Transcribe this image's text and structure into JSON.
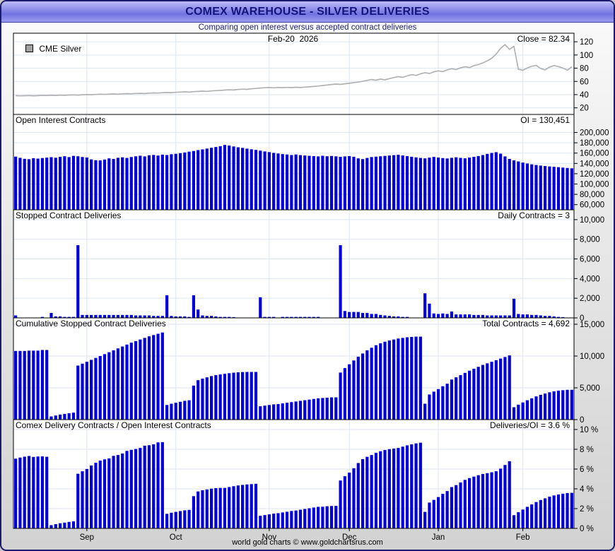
{
  "window": {
    "title": "COMEX WAREHOUSE - SILVER DELIVERIES",
    "subtitle": "Comparing open interest versus accepted contract deliveries",
    "footer": "world gold charts © www.goldchartsrus.com"
  },
  "colors": {
    "bar": "#0000dd",
    "price_line": "#b2b2b2",
    "grid": "#dde6f2",
    "frame": "#000000",
    "axis_text": "#000000",
    "title_text": "#14147c",
    "titlebar_blue": "#7272e0"
  },
  "chart_data": {
    "type": "bar",
    "title": "COMEX WAREHOUSE - SILVER DELIVERIES",
    "subtitle": "Comparing open interest versus accepted contract deliveries",
    "x_axis": {
      "n_points": 126,
      "month_labels": [
        "Sep",
        "Oct",
        "Nov",
        "Dec",
        "Jan",
        "Feb"
      ],
      "month_start_indices": [
        16,
        36,
        57,
        75,
        95,
        114
      ],
      "delivery_cycle_start_indices": [
        8,
        34,
        55,
        73,
        92,
        112
      ]
    },
    "panels": [
      {
        "type": "line",
        "series": "price",
        "legend_label": "CME Silver",
        "center_label": "Feb-20  2026",
        "right_label": "Close = 82.34",
        "close_value": 82.34,
        "ymin": 10,
        "ymax": 133,
        "ytick_vals": [
          20,
          40,
          60,
          80,
          100,
          120
        ],
        "ytick_labels": [
          "20",
          "40",
          "60",
          "80",
          "100",
          "120"
        ]
      },
      {
        "type": "bar",
        "series": "oi",
        "label": "Open Interest Contracts",
        "right_label": "OI = 130,451",
        "oi_value": 130451,
        "ymin": 50000,
        "ymax": 235000,
        "ytick_vals": [
          60000,
          80000,
          100000,
          120000,
          140000,
          160000,
          180000,
          200000
        ],
        "ytick_labels": [
          "60,000",
          "80,000",
          "100,000",
          "120,000",
          "140,000",
          "160,000",
          "180,000",
          "200,000"
        ]
      },
      {
        "type": "bar",
        "series": "daily",
        "label": "Stopped Contract Deliveries",
        "right_label": "Daily Contracts = 3",
        "daily_value": 3,
        "ymin": 0,
        "ymax": 11000,
        "ytick_vals": [
          0,
          2000,
          4000,
          6000,
          8000,
          10000
        ],
        "ytick_labels": [
          "0",
          "2,000",
          "4,000",
          "6,000",
          "8,000",
          "10,000"
        ]
      },
      {
        "type": "bar",
        "series": "cumulative",
        "label": "Cumulative Stopped Contract Deliveries",
        "right_label": "Total Contracts = 4,692",
        "total_value": 4692,
        "ymin": 0,
        "ymax": 16000,
        "ytick_vals": [
          0,
          5000,
          10000,
          15000
        ],
        "ytick_labels": [
          "0",
          "5,000",
          "10,000",
          "15,000"
        ]
      },
      {
        "type": "bar",
        "series": "ratio",
        "derived": "ratio = cumulative / oi * 100",
        "label": "Comex Delivery Contracts / Open Interest Contracts",
        "right_label": "Deliveries/OI = 3.6 %",
        "ratio_value": 3.6,
        "ymin": 0,
        "ymax": 11,
        "ytick_vals": [
          0,
          2,
          4,
          6,
          8,
          10
        ],
        "ytick_labels": [
          "0 %",
          "2 %",
          "4 %",
          "6 %",
          "8 %",
          "10 %"
        ]
      }
    ],
    "series": {
      "price": [
        38.4,
        38.1,
        38.3,
        38.6,
        38.2,
        38.5,
        38.9,
        38.7,
        39.0,
        38.8,
        39.2,
        39.0,
        39.4,
        39.6,
        39.3,
        39.8,
        40.1,
        39.9,
        40.3,
        40.6,
        40.4,
        40.8,
        41.0,
        40.7,
        41.2,
        41.5,
        41.3,
        41.8,
        42.0,
        41.7,
        42.3,
        42.6,
        42.4,
        42.9,
        43.2,
        43.0,
        43.5,
        43.9,
        44.2,
        43.8,
        44.5,
        44.9,
        45.3,
        45.0,
        45.6,
        46.0,
        46.4,
        46.9,
        47.3,
        47.0,
        47.8,
        48.3,
        48.0,
        48.8,
        49.4,
        50.0,
        50.4,
        50.8,
        50.3,
        50.9,
        50.5,
        51.0,
        50.6,
        51.2,
        50.8,
        51.4,
        51.8,
        52.4,
        53.0,
        53.8,
        54.5,
        55.3,
        56.0,
        55.5,
        56.4,
        57.2,
        58.1,
        59.0,
        60.2,
        61.5,
        62.8,
        61.9,
        63.5,
        62.4,
        64.2,
        65.8,
        67.2,
        66.1,
        68.4,
        70.2,
        69.0,
        71.5,
        73.2,
        72.0,
        74.5,
        76.0,
        74.8,
        77.5,
        79.2,
        78.0,
        80.5,
        82.3,
        81.0,
        83.8,
        85.5,
        88.0,
        91.2,
        95.0,
        101.5,
        110.0,
        115.8,
        108.5,
        113.2,
        78.5,
        76.8,
        80.4,
        83.0,
        84.2,
        79.6,
        77.5,
        81.8,
        84.0,
        82.5,
        80.2,
        77.0,
        82.34
      ],
      "oi": [
        153200,
        150800,
        148900,
        148200,
        150100,
        149300,
        150400,
        151200,
        152100,
        151000,
        152800,
        153900,
        152200,
        154600,
        153800,
        152400,
        151500,
        147800,
        146200,
        145800,
        147500,
        149800,
        148600,
        150900,
        151800,
        150600,
        152400,
        153800,
        154900,
        153600,
        155800,
        156400,
        155200,
        157100,
        156300,
        157800,
        158600,
        159900,
        161200,
        162800,
        164100,
        165900,
        167200,
        168800,
        170300,
        171900,
        173400,
        175800,
        174600,
        172900,
        171300,
        170100,
        168700,
        167400,
        166200,
        164800,
        163200,
        161900,
        160400,
        159200,
        158100,
        157300,
        156200,
        157400,
        156100,
        155300,
        154700,
        154100,
        153600,
        154800,
        153900,
        154500,
        153700,
        152800,
        153600,
        154200,
        152900,
        149800,
        148400,
        150600,
        152300,
        153100,
        153800,
        154600,
        155300,
        156100,
        156800,
        155400,
        154200,
        152900,
        151800,
        150600,
        149800,
        151200,
        152600,
        151400,
        150300,
        149600,
        150800,
        151900,
        150700,
        149900,
        151300,
        152800,
        154300,
        156200,
        158400,
        160300,
        161800,
        158900,
        153600,
        148700,
        145900,
        143800,
        141600,
        139800,
        138200,
        136900,
        135800,
        134900,
        134100,
        133400,
        132700,
        131900,
        131200,
        130451
      ],
      "daily": [
        250,
        0,
        0,
        50,
        0,
        0,
        100,
        0,
        500,
        150,
        150,
        100,
        100,
        100,
        7400,
        300,
        300,
        300,
        300,
        300,
        300,
        300,
        300,
        300,
        300,
        300,
        300,
        250,
        250,
        250,
        250,
        200,
        200,
        200,
        2300,
        200,
        150,
        150,
        150,
        100,
        2300,
        850,
        250,
        200,
        200,
        150,
        100,
        100,
        100,
        80,
        60,
        40,
        20,
        0,
        0,
        2100,
        100,
        100,
        100,
        50,
        100,
        100,
        100,
        100,
        100,
        100,
        100,
        100,
        100,
        50,
        50,
        50,
        0,
        7400,
        700,
        600,
        600,
        600,
        500,
        500,
        400,
        400,
        300,
        250,
        200,
        150,
        150,
        100,
        100,
        50,
        50,
        0,
        2500,
        1450,
        450,
        400,
        450,
        400,
        650,
        350,
        350,
        350,
        350,
        300,
        300,
        300,
        250,
        250,
        250,
        250,
        250,
        250,
        1950,
        400,
        350,
        350,
        300,
        300,
        250,
        200,
        200,
        150,
        100,
        80,
        59,
        3
      ],
      "cumulative": [
        10800,
        10800,
        10800,
        10850,
        10850,
        10850,
        10950,
        10950,
        500,
        650,
        800,
        900,
        1000,
        1100,
        8500,
        8800,
        9100,
        9400,
        9700,
        10000,
        10300,
        10600,
        10900,
        11200,
        11500,
        11800,
        12100,
        12350,
        12600,
        12850,
        13100,
        13300,
        13500,
        13700,
        2300,
        2500,
        2650,
        2800,
        2950,
        3050,
        5350,
        6200,
        6450,
        6650,
        6850,
        7000,
        7100,
        7200,
        7300,
        7380,
        7440,
        7480,
        7500,
        7500,
        7500,
        2100,
        2200,
        2300,
        2400,
        2450,
        2550,
        2650,
        2750,
        2850,
        2950,
        3050,
        3150,
        3250,
        3350,
        3400,
        3450,
        3500,
        3500,
        7400,
        8100,
        8700,
        9300,
        9900,
        10400,
        10900,
        11300,
        11700,
        12000,
        12250,
        12450,
        12600,
        12750,
        12850,
        12950,
        13000,
        13050,
        13050,
        2500,
        3950,
        4400,
        4800,
        5250,
        5650,
        6300,
        6650,
        7000,
        7350,
        7700,
        8000,
        8300,
        8600,
        8850,
        9100,
        9350,
        9600,
        9850,
        10100,
        1950,
        2350,
        2700,
        3050,
        3350,
        3650,
        3900,
        4100,
        4300,
        4450,
        4550,
        4630,
        4689,
        4692
      ]
    }
  }
}
